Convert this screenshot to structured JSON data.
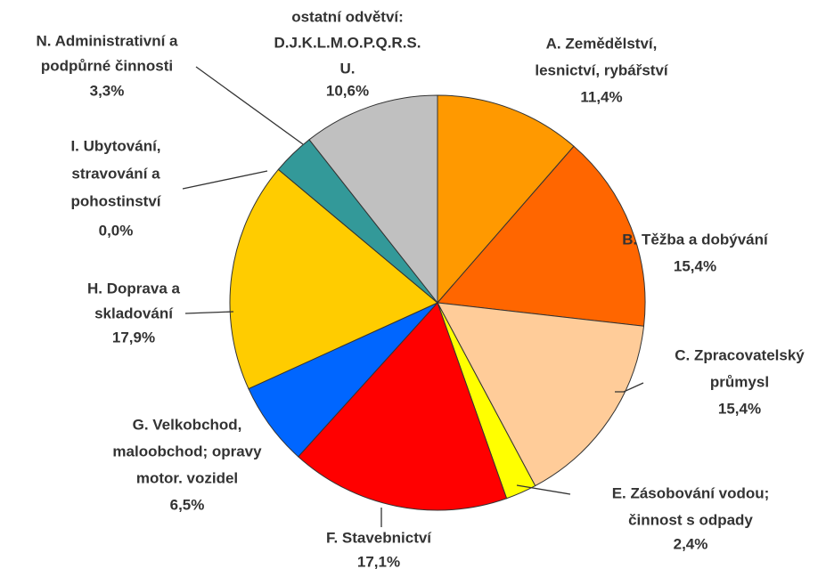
{
  "chart_data": {
    "type": "pie",
    "categories": [
      [
        "A. Zemědělství,",
        "lesnictví, rybářství"
      ],
      [
        "B. Těžba a dobývání"
      ],
      [
        "C. Zpracovatelský",
        "průmysl"
      ],
      [
        "E. Zásobování vodou;",
        "činnost s odpady"
      ],
      [
        "F. Stavebnictví"
      ],
      [
        "G. Velkobchod,",
        "maloobchod; opravy",
        "motor. vozidel"
      ],
      [
        "H. Doprava a",
        "skladování"
      ],
      [
        "I. Ubytování,",
        "stravování a",
        "pohostinství"
      ],
      [
        "N. Administrativní a",
        "podpůrné činnosti"
      ],
      [
        "ostatní odvětví:",
        "D.J.K.L.M.O.P.Q.R.S.",
        "U."
      ]
    ],
    "values": [
      11.4,
      15.4,
      15.4,
      2.4,
      17.1,
      6.5,
      17.9,
      0.0,
      3.3,
      10.6
    ],
    "value_labels": [
      "11,4%",
      "15,4%",
      "15,4%",
      "2,4%",
      "17,1%",
      "6,5%",
      "17,9%",
      "0,0%",
      "3,3%",
      "10,6%"
    ],
    "colors": [
      "#FF9900",
      "#FF6600",
      "#FFCC99",
      "#FFFF00",
      "#FF0000",
      "#0066FF",
      "#FFCC00",
      "#FFFF99",
      "#339999",
      "#C0C0C0"
    ]
  }
}
